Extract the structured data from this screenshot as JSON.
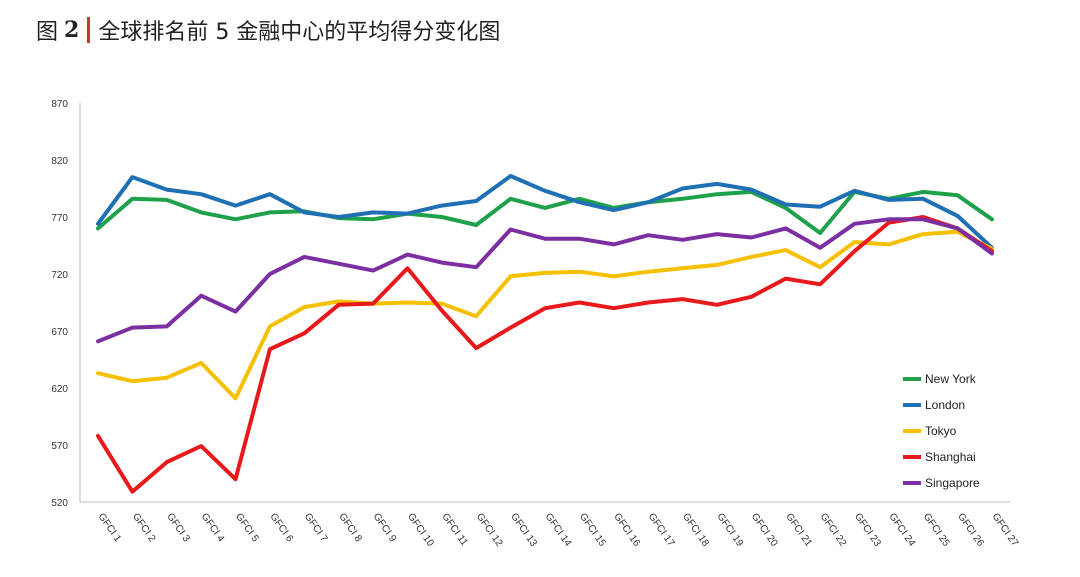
{
  "figure": {
    "label": "图",
    "number": "2",
    "title": "全球排名前 5 金融中心的平均得分变化图"
  },
  "chart_data": {
    "type": "line",
    "title": "全球排名前 5 金融中心的平均得分变化图",
    "xlabel": "",
    "ylabel": "",
    "ylim": [
      520,
      870
    ],
    "yticks": [
      520,
      570,
      620,
      670,
      720,
      770,
      820,
      870
    ],
    "grid": false,
    "legend_position": "bottom-right",
    "categories": [
      "GFCI 1",
      "GFCI 2",
      "GFCI 3",
      "GFCI 4",
      "GFCI 5",
      "GFCI 6",
      "GFCI 7",
      "GFCI 8",
      "GFCI 9",
      "GFCI 10",
      "GFCI 11",
      "GFCI 12",
      "GFCI 13",
      "GFCI 14",
      "GFCI 15",
      "GFCI 16",
      "GFCI 17",
      "GFCI 18",
      "GFCI 19",
      "GFCI 20",
      "GFCI 21",
      "GFCI 22",
      "GFCI 23",
      "GFCI 24",
      "GFCI 25",
      "GFCI 26",
      "GFCI 27"
    ],
    "series": [
      {
        "name": "New York",
        "color": "#1ea14a",
        "values": [
          760,
          786,
          785,
          774,
          768,
          774,
          775,
          769,
          768,
          773,
          770,
          763,
          786,
          778,
          786,
          778,
          783,
          786,
          790,
          792,
          778,
          756,
          792,
          786,
          792,
          789,
          768
        ]
      },
      {
        "name": "London",
        "color": "#1f6fb4",
        "values": [
          764,
          805,
          794,
          790,
          780,
          790,
          774,
          770,
          774,
          773,
          780,
          784,
          806,
          793,
          783,
          776,
          783,
          795,
          799,
          794,
          781,
          779,
          793,
          785,
          786,
          771,
          743
        ]
      },
      {
        "name": "Tokyo",
        "color": "#f5c000",
        "values": [
          633,
          626,
          629,
          642,
          611,
          674,
          691,
          696,
          694,
          695,
          694,
          683,
          718,
          721,
          722,
          718,
          722,
          725,
          728,
          735,
          741,
          726,
          748,
          746,
          755,
          757,
          742
        ]
      },
      {
        "name": "Shanghai",
        "color": "#e8191b",
        "values": [
          578,
          529,
          555,
          569,
          540,
          654,
          668,
          693,
          694,
          725,
          688,
          655,
          673,
          690,
          695,
          690,
          695,
          698,
          693,
          700,
          716,
          711,
          740,
          765,
          770,
          760,
          740
        ]
      },
      {
        "name": "Singapore",
        "color": "#7b2fa0",
        "values": [
          661,
          673,
          674,
          701,
          687,
          720,
          735,
          729,
          723,
          737,
          730,
          726,
          759,
          751,
          751,
          746,
          754,
          750,
          755,
          752,
          760,
          743,
          764,
          768,
          768,
          760,
          738
        ]
      }
    ]
  }
}
